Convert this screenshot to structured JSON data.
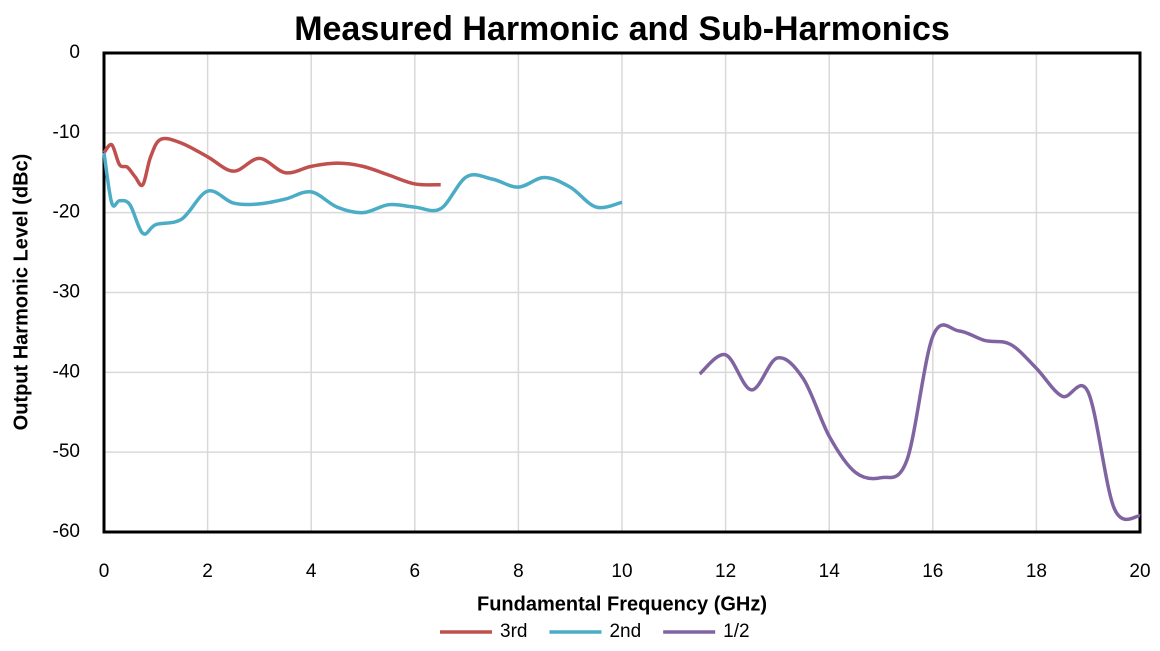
{
  "chart_data": {
    "type": "line",
    "title": "Measured Harmonic and Sub-Harmonics",
    "x_label": "Fundamental Frequency (GHz)",
    "y_label": "Output Harmonic Level (dBc)",
    "xlim": [
      0,
      20
    ],
    "xticks": [
      0,
      2,
      4,
      6,
      8,
      10,
      12,
      14,
      16,
      18,
      20
    ],
    "ylim": [
      -60,
      0
    ],
    "yticks": [
      0,
      -10,
      -20,
      -30,
      -40,
      -50,
      -60
    ],
    "grid": true,
    "legend": "bottom",
    "series": [
      {
        "name": "3rd",
        "color": "#c0504d",
        "x": [
          0,
          0.15,
          0.3,
          0.45,
          0.6,
          0.75,
          0.9,
          1.1,
          1.5,
          2,
          2.5,
          3,
          3.5,
          4,
          4.5,
          5,
          5.5,
          6,
          6.5
        ],
        "values": [
          -12.5,
          -11.5,
          -14,
          -14.3,
          -15.5,
          -16.5,
          -13,
          -10.8,
          -11.3,
          -13,
          -14.8,
          -13.2,
          -15,
          -14.2,
          -13.8,
          -14.2,
          -15.3,
          -16.4,
          -16.5
        ]
      },
      {
        "name": "2nd",
        "color": "#4bacc6",
        "x": [
          0,
          0.15,
          0.3,
          0.5,
          0.75,
          1,
          1.5,
          2,
          2.5,
          3,
          3.5,
          4,
          4.5,
          5,
          5.5,
          6,
          6.5,
          7,
          7.5,
          8,
          8.5,
          9,
          9.5,
          10
        ],
        "values": [
          -12.5,
          -18.8,
          -18.5,
          -19,
          -22.6,
          -21.5,
          -20.8,
          -17.3,
          -18.8,
          -18.9,
          -18.3,
          -17.4,
          -19.3,
          -20,
          -19,
          -19.3,
          -19.5,
          -15.5,
          -15.8,
          -16.8,
          -15.6,
          -16.8,
          -19.3,
          -18.7
        ]
      },
      {
        "name": "1/2",
        "color": "#8064a2",
        "x": [
          11.5,
          12,
          12.5,
          13,
          13.5,
          14,
          14.5,
          15,
          15.5,
          16,
          16.5,
          17,
          17.5,
          18,
          18.5,
          19,
          19.5,
          20
        ],
        "values": [
          -40.2,
          -37.8,
          -42.2,
          -38.2,
          -40.8,
          -48,
          -52.5,
          -53.2,
          -51,
          -35.5,
          -34.8,
          -36,
          -36.5,
          -39.5,
          -43,
          -42.5,
          -57,
          -58
        ]
      }
    ]
  }
}
